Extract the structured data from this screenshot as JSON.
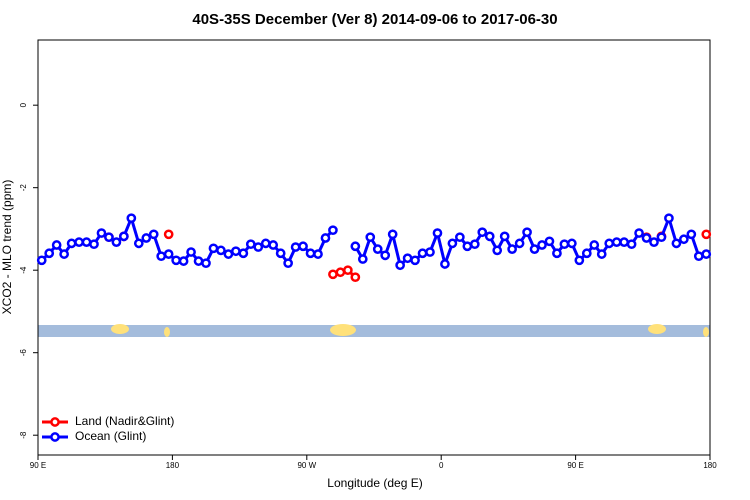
{
  "chart_data": {
    "type": "line",
    "title": "40S-35S December (Ver 8)   2014-09-06 to 2017-06-30",
    "x_label": "Longitude (deg E)",
    "y_label": "XCO2 - MLO trend (ppm)",
    "x": [
      92.5,
      97.5,
      102.5,
      107.5,
      112.5,
      117.5,
      122.5,
      127.5,
      132.5,
      137.5,
      142.5,
      147.5,
      152.5,
      157.5,
      162.5,
      167.5,
      172.5,
      177.5,
      182.5,
      187.5,
      192.5,
      197.5,
      202.5,
      207.5,
      212.5,
      217.5,
      222.5,
      227.5,
      232.5,
      237.5,
      242.5,
      247.5,
      252.5,
      257.5,
      262.5,
      267.5,
      272.5,
      277.5,
      282.5,
      287.5,
      292.5,
      297.5,
      302.5,
      307.5,
      312.5,
      317.5,
      322.5,
      327.5,
      332.5,
      337.5,
      342.5,
      347.5,
      352.5,
      357.5,
      362.5,
      367.5,
      372.5,
      377.5,
      382.5,
      387.5,
      392.5,
      397.5,
      402.5,
      407.5,
      412.5,
      417.5,
      422.5,
      427.5,
      432.5,
      437.5,
      442.5,
      447.5,
      452.5,
      457.5,
      462.5,
      467.5,
      472.5,
      477.5,
      482.5,
      487.5,
      492.5,
      497.5,
      502.5,
      507.5,
      512.5,
      517.5,
      522.5,
      527.5,
      532.5,
      537.5
    ],
    "series": [
      {
        "name": "Land (Nadir&Glint)",
        "color": "#ff0000",
        "values": [
          null,
          null,
          null,
          null,
          null,
          null,
          null,
          null,
          null,
          -3.2,
          null,
          -3.18,
          null,
          null,
          null,
          null,
          null,
          -3.13,
          null,
          null,
          null,
          null,
          null,
          null,
          null,
          null,
          null,
          null,
          null,
          null,
          null,
          null,
          null,
          null,
          null,
          null,
          null,
          null,
          null,
          -4.1,
          -4.05,
          -4.0,
          -4.17,
          null,
          null,
          null,
          null,
          null,
          null,
          null,
          null,
          null,
          null,
          null,
          null,
          null,
          null,
          null,
          null,
          null,
          null,
          null,
          null,
          null,
          null,
          null,
          null,
          null,
          null,
          null,
          null,
          null,
          null,
          null,
          null,
          null,
          null,
          null,
          null,
          null,
          null,
          -3.2,
          null,
          -3.18,
          null,
          null,
          null,
          null,
          null,
          -3.13
        ]
      },
      {
        "name": "Ocean (Glint)",
        "color": "#0000ff",
        "values": [
          -3.76,
          -3.59,
          -3.39,
          -3.61,
          -3.35,
          -3.32,
          -3.32,
          -3.37,
          -3.1,
          -3.2,
          -3.32,
          -3.18,
          -2.74,
          -3.35,
          -3.22,
          -3.13,
          -3.66,
          -3.61,
          -3.76,
          -3.78,
          -3.56,
          -3.78,
          -3.83,
          -3.47,
          -3.52,
          -3.61,
          -3.54,
          -3.59,
          -3.37,
          -3.44,
          -3.35,
          -3.39,
          -3.59,
          -3.83,
          -3.44,
          -3.42,
          -3.59,
          -3.61,
          -3.22,
          -3.03,
          null,
          null,
          -3.42,
          -3.73,
          -3.2,
          -3.49,
          -3.64,
          -3.13,
          -3.88,
          -3.71,
          -3.76,
          -3.59,
          -3.56,
          -3.1,
          -3.85,
          -3.35,
          -3.2,
          -3.42,
          -3.37,
          -3.08,
          -3.18,
          -3.52,
          -3.18,
          -3.49,
          -3.35,
          -3.08,
          -3.49,
          -3.39,
          -3.3,
          -3.59,
          -3.37,
          -3.35,
          -3.76,
          -3.59,
          -3.39,
          -3.61,
          -3.35,
          -3.32,
          -3.32,
          -3.37,
          -3.1,
          -3.22,
          -3.32,
          -3.2,
          -2.74,
          -3.35,
          -3.25,
          -3.13,
          -3.66,
          -3.61
        ]
      }
    ],
    "xlim": [
      90,
      540
    ],
    "xticks": [
      {
        "value": 90,
        "label": "90 E"
      },
      {
        "value": 180,
        "label": "180"
      },
      {
        "value": 270,
        "label": "90 W"
      },
      {
        "value": 360,
        "label": "0"
      },
      {
        "value": 450,
        "label": "90 E"
      },
      {
        "value": 540,
        "label": "180"
      }
    ],
    "ylim": [
      -8.48,
      1.58
    ],
    "yticks": [
      0,
      -2,
      -4,
      -6,
      -8
    ],
    "legend": "bottom-left"
  }
}
